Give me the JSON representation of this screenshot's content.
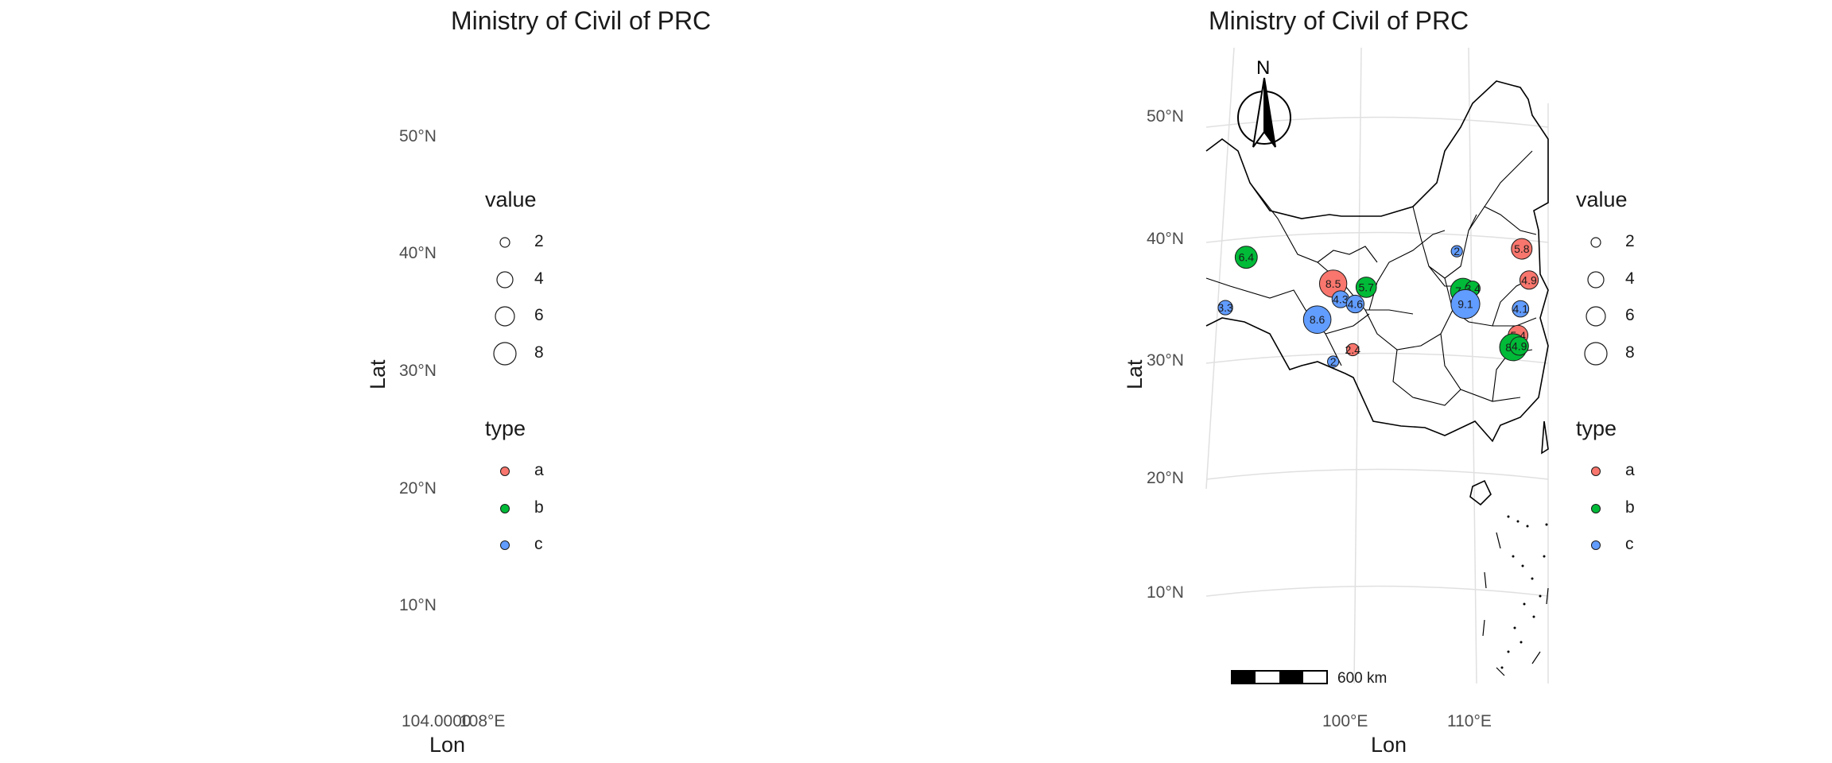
{
  "panels": [
    {
      "title": "Ministry of Civil of PRC",
      "ylabel": "Lat",
      "xlabel": "Lon",
      "y_ticks": [
        "50°N",
        "40°N",
        "30°N",
        "20°N",
        "10°N"
      ],
      "x_ticks": [
        "104.0000",
        "108°E"
      ]
    },
    {
      "title": "Ministry of Civil of PRC",
      "ylabel": "Lat",
      "xlabel": "Lon",
      "y_ticks": [
        "50°N",
        "40°N",
        "30°N",
        "20°N",
        "10°N"
      ],
      "x_ticks": [
        "100°E",
        "110°E"
      ],
      "north_arrow": "N",
      "scale_bar": "600 km"
    }
  ],
  "legend": {
    "size_title": "value",
    "size_items": [
      "2",
      "4",
      "6",
      "8"
    ],
    "type_title": "type",
    "type_items": [
      {
        "label": "a",
        "color": "#F8766D"
      },
      {
        "label": "b",
        "color": "#00BA38"
      },
      {
        "label": "c",
        "color": "#619CFF"
      }
    ]
  },
  "chart_data": {
    "type": "scatter",
    "subtype": "bubble map",
    "title": "Ministry of Civil of PRC",
    "xlabel": "Lon",
    "ylabel": "Lat",
    "ylim": [
      0,
      55
    ],
    "xlim": [
      93,
      120
    ],
    "grid": true,
    "legend_position": "right",
    "series": [
      {
        "name": "a",
        "color": "#F8766D",
        "points": [
          {
            "lon": 101.6,
            "lat": 36.3,
            "value": 8.5
          },
          {
            "lon": 103.2,
            "lat": 30.8,
            "value": 2.4
          },
          {
            "lon": 117.0,
            "lat": 39.2,
            "value": 5.8
          },
          {
            "lon": 117.6,
            "lat": 36.6,
            "value": 4.9
          },
          {
            "lon": 116.7,
            "lat": 32.0,
            "value": 5.4
          }
        ]
      },
      {
        "name": "b",
        "color": "#00BA38",
        "points": [
          {
            "lon": 94.5,
            "lat": 38.5,
            "value": 6.4
          },
          {
            "lon": 104.3,
            "lat": 36.0,
            "value": 5.7
          },
          {
            "lon": 112.2,
            "lat": 35.7,
            "value": 7.6
          },
          {
            "lon": 113.0,
            "lat": 35.9,
            "value": 3.4
          },
          {
            "lon": 116.3,
            "lat": 31.0,
            "value": 8.4
          },
          {
            "lon": 116.8,
            "lat": 31.1,
            "value": 4.9
          }
        ]
      },
      {
        "name": "c",
        "color": "#619CFF",
        "points": [
          {
            "lon": 92.8,
            "lat": 34.3,
            "value": 3.3
          },
          {
            "lon": 100.3,
            "lat": 33.3,
            "value": 8.6
          },
          {
            "lon": 102.2,
            "lat": 35.0,
            "value": 4.3
          },
          {
            "lon": 103.4,
            "lat": 34.6,
            "value": 4.6
          },
          {
            "lon": 101.6,
            "lat": 29.8,
            "value": 2.0
          },
          {
            "lon": 111.7,
            "lat": 39.0,
            "value": 2.0
          },
          {
            "lon": 112.4,
            "lat": 34.6,
            "value": 9.1
          },
          {
            "lon": 116.9,
            "lat": 34.2,
            "value": 4.1
          }
        ]
      }
    ]
  }
}
